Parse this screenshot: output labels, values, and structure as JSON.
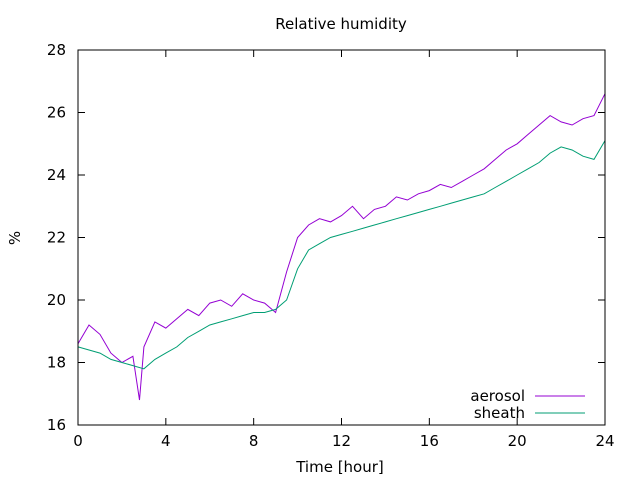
{
  "chart_data": {
    "type": "line",
    "title": "Relative humidity",
    "xlabel": "Time [hour]",
    "ylabel": "%",
    "xlim": [
      0,
      24
    ],
    "ylim": [
      16,
      28
    ],
    "xticks": [
      0,
      4,
      8,
      12,
      16,
      20,
      24
    ],
    "yticks": [
      16,
      18,
      20,
      22,
      24,
      26,
      28
    ],
    "grid": false,
    "legend_position": "bottom-right",
    "series": [
      {
        "name": "aerosol",
        "color": "#9400d3",
        "x": [
          0,
          0.5,
          1,
          1.5,
          2,
          2.5,
          2.8,
          3,
          3.5,
          4,
          4.5,
          5,
          5.5,
          6,
          6.5,
          7,
          7.5,
          8,
          8.5,
          9,
          9.5,
          10,
          10.5,
          11,
          11.5,
          12,
          12.5,
          13,
          13.5,
          14,
          14.5,
          15,
          15.5,
          16,
          16.5,
          17,
          17.5,
          18,
          18.5,
          19,
          19.5,
          20,
          20.5,
          21,
          21.5,
          22,
          22.5,
          23,
          23.5,
          24
        ],
        "y": [
          18.6,
          19.2,
          18.9,
          18.3,
          18.0,
          18.2,
          16.8,
          18.5,
          19.3,
          19.1,
          19.4,
          19.7,
          19.5,
          19.9,
          20.0,
          19.8,
          20.2,
          20.0,
          19.9,
          19.6,
          20.9,
          22.0,
          22.4,
          22.6,
          22.5,
          22.7,
          23.0,
          22.6,
          22.9,
          23.0,
          23.3,
          23.2,
          23.4,
          23.5,
          23.7,
          23.6,
          23.8,
          24.0,
          24.2,
          24.5,
          24.8,
          25.0,
          25.3,
          25.6,
          25.9,
          25.7,
          25.6,
          25.8,
          25.9,
          26.6
        ]
      },
      {
        "name": "sheath",
        "color": "#009e73",
        "x": [
          0,
          0.5,
          1,
          1.5,
          2,
          2.5,
          3,
          3.5,
          4,
          4.5,
          5,
          5.5,
          6,
          6.5,
          7,
          7.5,
          8,
          8.5,
          9,
          9.5,
          10,
          10.5,
          11,
          11.5,
          12,
          12.5,
          13,
          13.5,
          14,
          14.5,
          15,
          15.5,
          16,
          16.5,
          17,
          17.5,
          18,
          18.5,
          19,
          19.5,
          20,
          20.5,
          21,
          21.5,
          22,
          22.5,
          23,
          23.5,
          24
        ],
        "y": [
          18.5,
          18.4,
          18.3,
          18.1,
          18.0,
          17.9,
          17.8,
          18.1,
          18.3,
          18.5,
          18.8,
          19.0,
          19.2,
          19.3,
          19.4,
          19.5,
          19.6,
          19.6,
          19.7,
          20.0,
          21.0,
          21.6,
          21.8,
          22.0,
          22.1,
          22.2,
          22.3,
          22.4,
          22.5,
          22.6,
          22.7,
          22.8,
          22.9,
          23.0,
          23.1,
          23.2,
          23.3,
          23.4,
          23.6,
          23.8,
          24.0,
          24.2,
          24.4,
          24.7,
          24.9,
          24.8,
          24.6,
          24.5,
          25.1
        ]
      }
    ]
  }
}
